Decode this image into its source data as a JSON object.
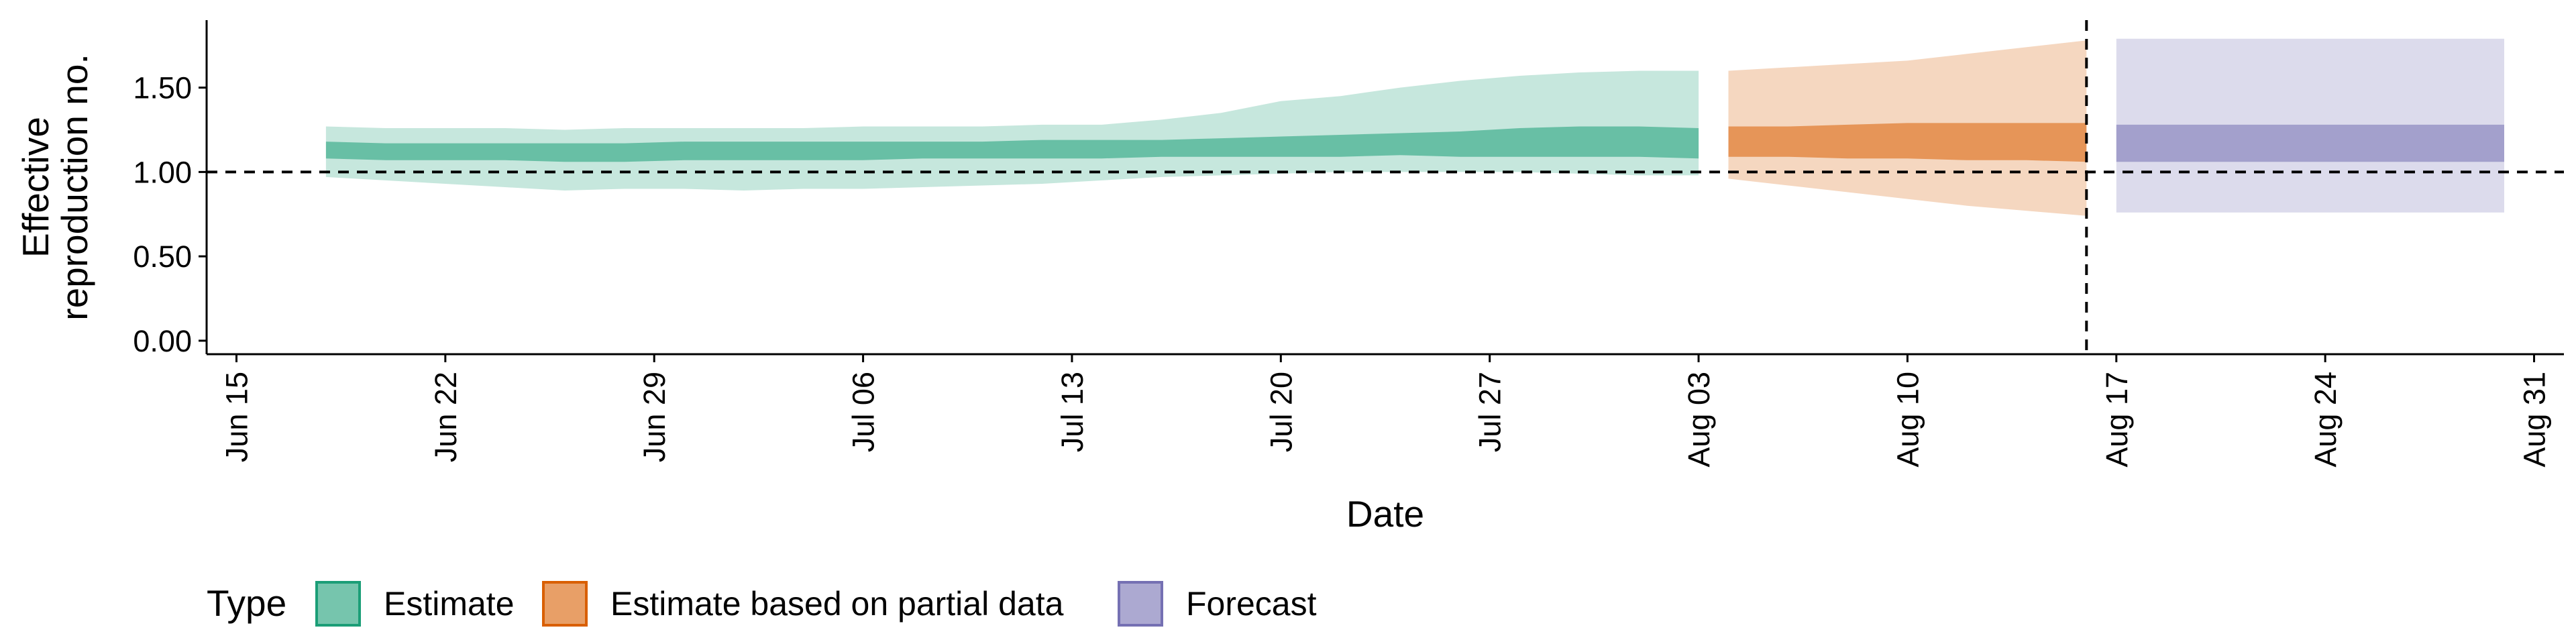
{
  "chart_data": {
    "type": "area",
    "title": "",
    "xlabel": "Date",
    "ylabel": [
      "Effective",
      "reproduction no."
    ],
    "x_ticks": [
      "Jun 15",
      "Jun 22",
      "Jun 29",
      "Jul 06",
      "Jul 13",
      "Jul 20",
      "Jul 27",
      "Aug 03",
      "Aug 10",
      "Aug 17",
      "Aug 24",
      "Aug 31"
    ],
    "y_ticks": [
      "0.00",
      "0.50",
      "1.00",
      "1.50"
    ],
    "xlim": [
      "2020-06-14",
      "2020-09-01"
    ],
    "ylim": [
      -0.08,
      1.9
    ],
    "reference_lines": {
      "y": 1.0,
      "x": "2020-08-16"
    },
    "legend": {
      "title": "Type",
      "position": "bottom-left"
    },
    "series": [
      {
        "name": "Estimate",
        "color": "#1b9e77",
        "x": [
          "2020-06-18",
          "2020-06-20",
          "2020-06-22",
          "2020-06-24",
          "2020-06-26",
          "2020-06-28",
          "2020-06-30",
          "2020-07-02",
          "2020-07-04",
          "2020-07-06",
          "2020-07-08",
          "2020-07-10",
          "2020-07-12",
          "2020-07-14",
          "2020-07-16",
          "2020-07-18",
          "2020-07-20",
          "2020-07-22",
          "2020-07-24",
          "2020-07-26",
          "2020-07-28",
          "2020-07-30",
          "2020-08-01",
          "2020-08-03"
        ],
        "lower90": [
          0.97,
          0.95,
          0.93,
          0.91,
          0.89,
          0.9,
          0.9,
          0.89,
          0.9,
          0.9,
          0.91,
          0.92,
          0.93,
          0.95,
          0.97,
          0.98,
          0.99,
          1.0,
          1.0,
          1.0,
          1.0,
          0.99,
          0.98,
          0.98
        ],
        "upper90": [
          1.27,
          1.26,
          1.26,
          1.26,
          1.25,
          1.26,
          1.26,
          1.26,
          1.26,
          1.27,
          1.27,
          1.27,
          1.28,
          1.28,
          1.31,
          1.35,
          1.42,
          1.45,
          1.5,
          1.54,
          1.57,
          1.59,
          1.6,
          1.6
        ],
        "lower50": [
          1.08,
          1.07,
          1.07,
          1.07,
          1.06,
          1.06,
          1.07,
          1.07,
          1.07,
          1.07,
          1.08,
          1.08,
          1.08,
          1.08,
          1.09,
          1.09,
          1.09,
          1.09,
          1.1,
          1.09,
          1.09,
          1.09,
          1.09,
          1.08
        ],
        "upper50": [
          1.18,
          1.17,
          1.17,
          1.17,
          1.17,
          1.17,
          1.18,
          1.18,
          1.18,
          1.18,
          1.18,
          1.18,
          1.19,
          1.19,
          1.19,
          1.2,
          1.21,
          1.22,
          1.23,
          1.24,
          1.26,
          1.27,
          1.27,
          1.26
        ]
      },
      {
        "name": "Estimate based on partial data",
        "color": "#d95f02",
        "x": [
          "2020-08-04",
          "2020-08-06",
          "2020-08-08",
          "2020-08-10",
          "2020-08-12",
          "2020-08-14",
          "2020-08-16"
        ],
        "lower90": [
          0.96,
          0.92,
          0.88,
          0.84,
          0.8,
          0.77,
          0.74
        ],
        "upper90": [
          1.6,
          1.62,
          1.64,
          1.66,
          1.7,
          1.74,
          1.78
        ],
        "lower50": [
          1.09,
          1.09,
          1.08,
          1.08,
          1.07,
          1.07,
          1.06
        ],
        "upper50": [
          1.27,
          1.27,
          1.28,
          1.29,
          1.29,
          1.29,
          1.29
        ]
      },
      {
        "name": "Forecast",
        "color": "#7570b3",
        "x": [
          "2020-08-17",
          "2020-08-30"
        ],
        "lower90": [
          0.76,
          0.76
        ],
        "upper90": [
          1.79,
          1.79
        ],
        "lower50": [
          1.06,
          1.06
        ],
        "upper50": [
          1.28,
          1.28
        ]
      }
    ]
  }
}
